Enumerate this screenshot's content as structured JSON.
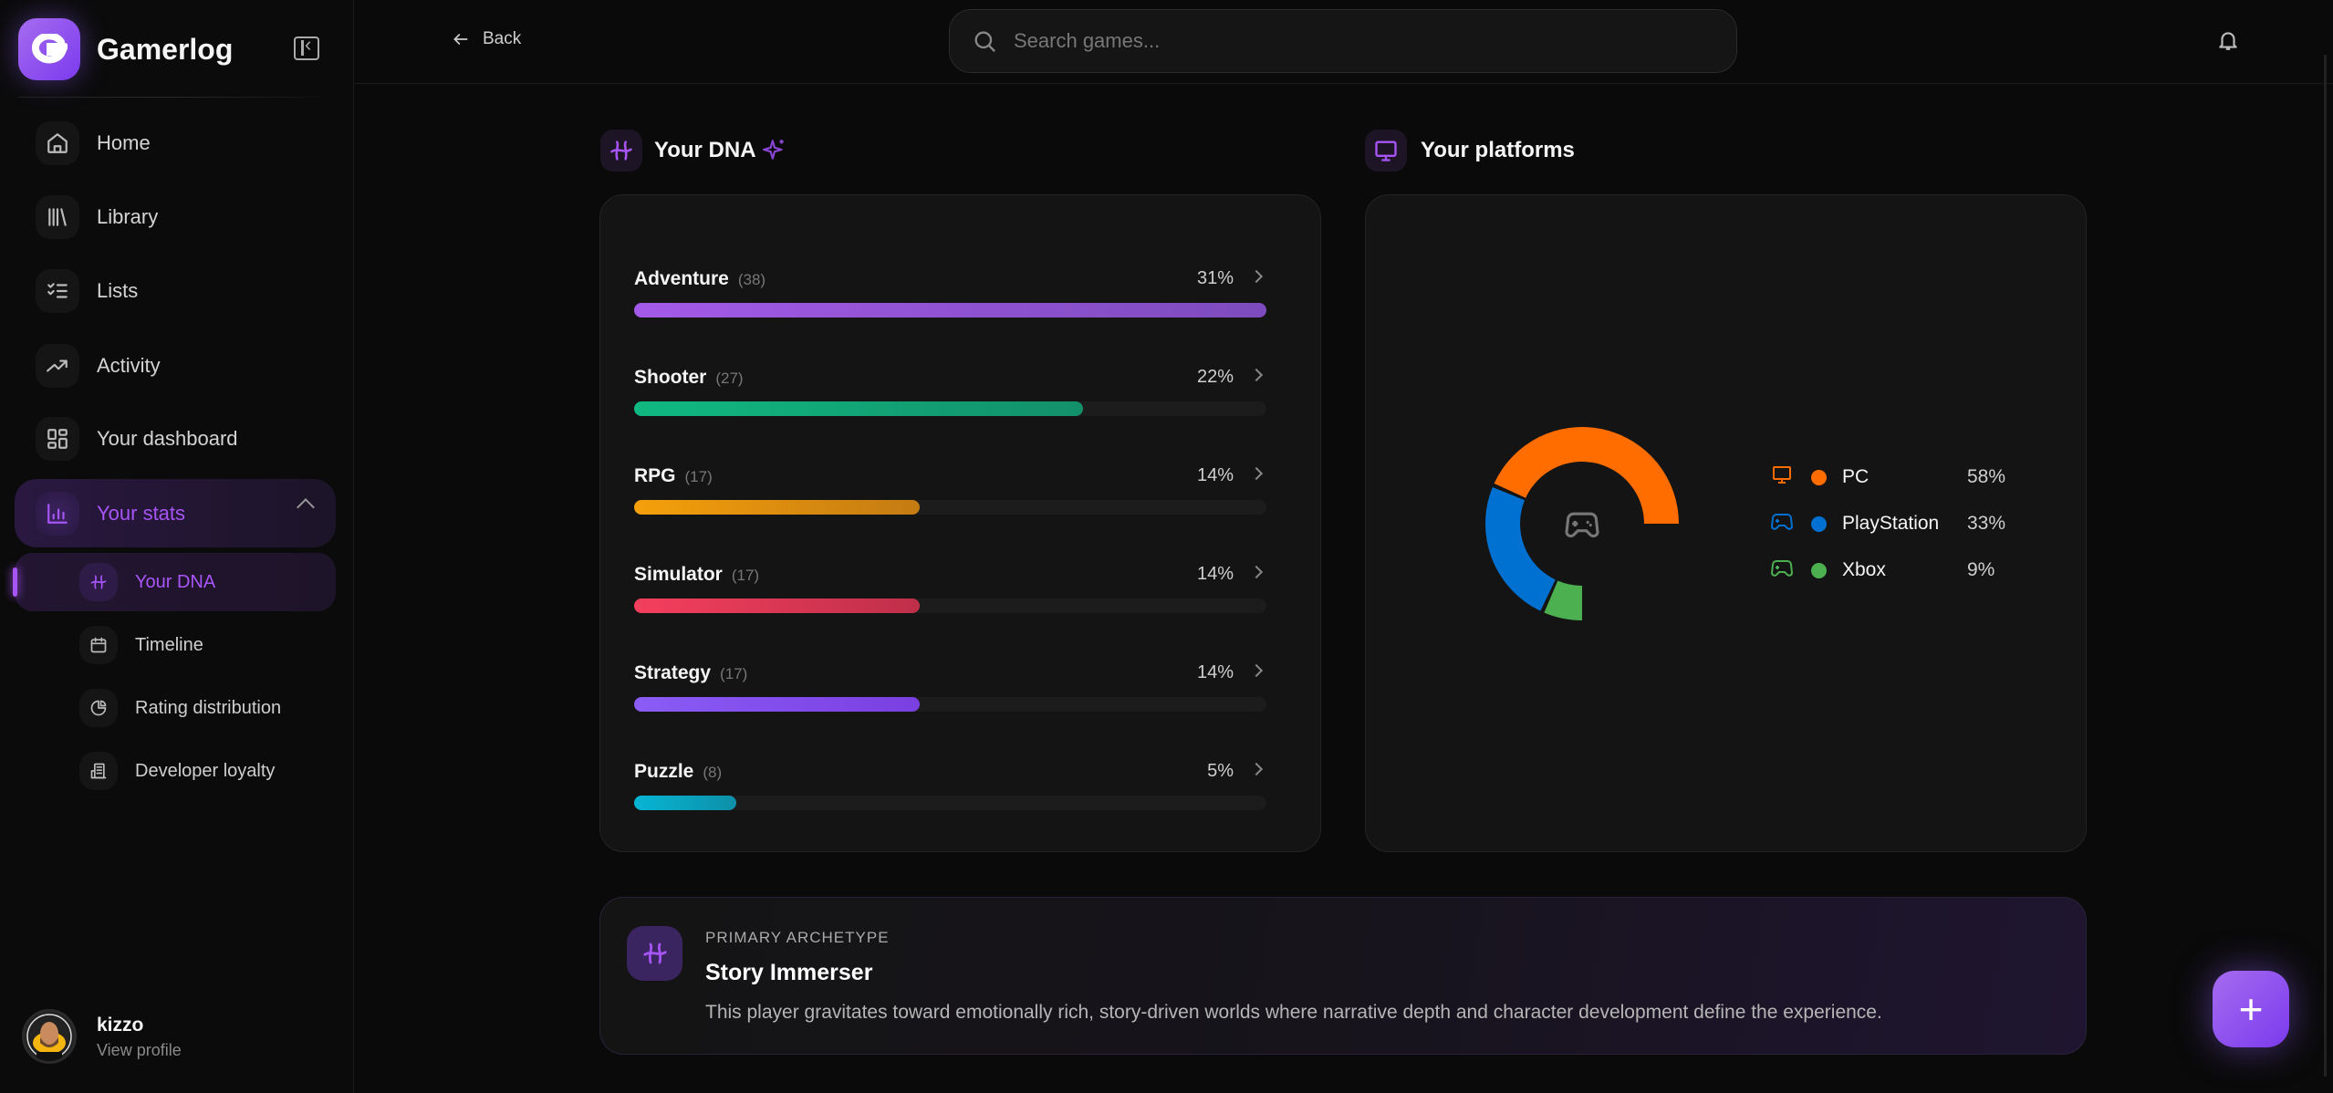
{
  "app": {
    "name": "Gamerlog",
    "logo_letter": "G"
  },
  "sidebar": {
    "items": [
      {
        "label": "Home",
        "icon": "home-icon"
      },
      {
        "label": "Library",
        "icon": "library-icon"
      },
      {
        "label": "Lists",
        "icon": "list-check-icon"
      },
      {
        "label": "Activity",
        "icon": "trending-icon"
      },
      {
        "label": "Your dashboard",
        "icon": "dashboard-icon"
      }
    ],
    "stats": {
      "label": "Your stats",
      "icon": "bar-chart-icon",
      "expanded": true
    },
    "sub_items": [
      {
        "label": "Your DNA",
        "icon": "dna-icon",
        "active": true
      },
      {
        "label": "Timeline",
        "icon": "calendar-icon"
      },
      {
        "label": "Rating distribution",
        "icon": "pie-icon"
      },
      {
        "label": "Developer loyalty",
        "icon": "building-icon"
      }
    ],
    "user": {
      "name": "kizzo",
      "link": "View profile"
    }
  },
  "header": {
    "back_label": "Back",
    "search_placeholder": "Search games...",
    "search_value": ""
  },
  "dna": {
    "title": "Your DNA",
    "genres": [
      {
        "name": "Adventure",
        "count": "(38)",
        "pct": 31,
        "pct_label": "31%",
        "color": [
          "#a35ae8",
          "#7d4bbd"
        ]
      },
      {
        "name": "Shooter",
        "count": "(27)",
        "pct": 22,
        "pct_label": "22%",
        "color": [
          "#10b981",
          "#13906a"
        ]
      },
      {
        "name": "RPG",
        "count": "(17)",
        "pct": 14,
        "pct_label": "14%",
        "color": [
          "#f5a00b",
          "#c47b12"
        ]
      },
      {
        "name": "Simulator",
        "count": "(17)",
        "pct": 14,
        "pct_label": "14%",
        "color": [
          "#f43f5e",
          "#bf2f49"
        ]
      },
      {
        "name": "Strategy",
        "count": "(17)",
        "pct": 14,
        "pct_label": "14%",
        "color": [
          "#8b5cf6",
          "#7a3fe0"
        ]
      },
      {
        "name": "Puzzle",
        "count": "(8)",
        "pct": 5,
        "pct_label": "5%",
        "color": [
          "#06b6d4",
          "#0e8fa8"
        ]
      }
    ]
  },
  "platforms": {
    "title": "Your platforms",
    "center_icon": "gamepad-icon",
    "items": [
      {
        "name": "PC",
        "value": 58,
        "label": "58%",
        "color": "#ff6d00",
        "icon": "monitor-icon"
      },
      {
        "name": "PlayStation",
        "value": 33,
        "label": "33%",
        "color": "#0070d1",
        "icon": "gamepad-icon"
      },
      {
        "name": "Xbox",
        "value": 9,
        "label": "9%",
        "color": "#4caf50",
        "icon": "gamepad-icon"
      }
    ]
  },
  "archetype": {
    "eyebrow": "PRIMARY ARCHETYPE",
    "title": "Story Immerser",
    "description": "This player gravitates toward emotionally rich, story-driven worlds where narrative depth and character development define the experience."
  },
  "fab": {
    "label": "+"
  },
  "colors": {
    "accent": "#a855f7",
    "background": "#0a0a0a",
    "card": "#141414"
  }
}
